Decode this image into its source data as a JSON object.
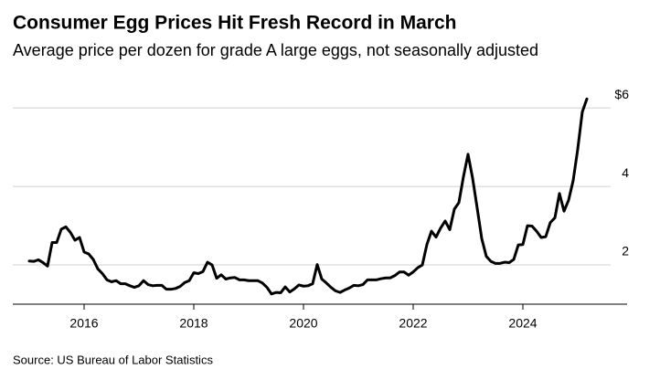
{
  "chart_data": {
    "type": "line",
    "title": "Consumer Egg Prices Hit Fresh Record in March",
    "subtitle": "Average price per dozen for grade A large eggs, not seasonally adjusted",
    "source": "Source: US Bureau of Labor Statistics",
    "color": "#000000",
    "x": [
      "2015-01",
      "2015-02",
      "2015-03",
      "2015-04",
      "2015-05",
      "2015-06",
      "2015-07",
      "2015-08",
      "2015-09",
      "2015-10",
      "2015-11",
      "2015-12",
      "2016-01",
      "2016-02",
      "2016-03",
      "2016-04",
      "2016-05",
      "2016-06",
      "2016-07",
      "2016-08",
      "2016-09",
      "2016-10",
      "2016-11",
      "2016-12",
      "2017-01",
      "2017-02",
      "2017-03",
      "2017-04",
      "2017-05",
      "2017-06",
      "2017-07",
      "2017-08",
      "2017-09",
      "2017-10",
      "2017-11",
      "2017-12",
      "2018-01",
      "2018-02",
      "2018-03",
      "2018-04",
      "2018-05",
      "2018-06",
      "2018-07",
      "2018-08",
      "2018-09",
      "2018-10",
      "2018-11",
      "2018-12",
      "2019-01",
      "2019-02",
      "2019-03",
      "2019-04",
      "2019-05",
      "2019-06",
      "2019-07",
      "2019-08",
      "2019-09",
      "2019-10",
      "2019-11",
      "2019-12",
      "2020-01",
      "2020-02",
      "2020-03",
      "2020-04",
      "2020-05",
      "2020-06",
      "2020-07",
      "2020-08",
      "2020-09",
      "2020-10",
      "2020-11",
      "2020-12",
      "2021-01",
      "2021-02",
      "2021-03",
      "2021-04",
      "2021-05",
      "2021-06",
      "2021-07",
      "2021-08",
      "2021-09",
      "2021-10",
      "2021-11",
      "2021-12",
      "2022-01",
      "2022-02",
      "2022-03",
      "2022-04",
      "2022-05",
      "2022-06",
      "2022-07",
      "2022-08",
      "2022-09",
      "2022-10",
      "2022-11",
      "2022-12",
      "2023-01",
      "2023-02",
      "2023-03",
      "2023-04",
      "2023-05",
      "2023-06",
      "2023-07",
      "2023-08",
      "2023-09",
      "2023-10",
      "2023-11",
      "2023-12",
      "2024-01",
      "2024-02",
      "2024-03",
      "2024-04",
      "2024-05",
      "2024-06",
      "2024-07",
      "2024-08",
      "2024-09",
      "2024-10",
      "2024-11",
      "2024-12",
      "2025-01",
      "2025-02",
      "2025-03"
    ],
    "values": [
      2.1,
      2.09,
      2.13,
      2.06,
      1.97,
      2.57,
      2.57,
      2.91,
      2.97,
      2.83,
      2.63,
      2.7,
      2.33,
      2.28,
      2.14,
      1.9,
      1.78,
      1.62,
      1.57,
      1.6,
      1.52,
      1.52,
      1.47,
      1.43,
      1.47,
      1.6,
      1.5,
      1.47,
      1.48,
      1.48,
      1.38,
      1.38,
      1.4,
      1.45,
      1.55,
      1.6,
      1.8,
      1.78,
      1.83,
      2.07,
      2.0,
      1.66,
      1.75,
      1.64,
      1.67,
      1.68,
      1.62,
      1.62,
      1.6,
      1.6,
      1.6,
      1.54,
      1.43,
      1.26,
      1.3,
      1.29,
      1.44,
      1.31,
      1.39,
      1.49,
      1.46,
      1.47,
      1.52,
      2.01,
      1.64,
      1.54,
      1.43,
      1.34,
      1.3,
      1.36,
      1.41,
      1.48,
      1.47,
      1.5,
      1.62,
      1.62,
      1.62,
      1.65,
      1.67,
      1.67,
      1.73,
      1.82,
      1.82,
      1.74,
      1.82,
      1.93,
      2.0,
      2.52,
      2.86,
      2.71,
      2.94,
      3.12,
      2.9,
      3.42,
      3.59,
      4.25,
      4.82,
      4.21,
      3.45,
      2.67,
      2.22,
      2.09,
      2.04,
      2.04,
      2.07,
      2.06,
      2.14,
      2.51,
      2.52,
      3.0,
      2.99,
      2.86,
      2.7,
      2.72,
      3.08,
      3.2,
      3.82,
      3.37,
      3.65,
      4.15,
      4.95,
      5.9,
      6.23
    ],
    "xlim": [
      2014.7,
      2025.9
    ],
    "xticks": [
      2016,
      2018,
      2020,
      2022,
      2024
    ],
    "ylim": [
      1,
      6.4
    ],
    "yticks": [
      2,
      4,
      {
        "value": 6,
        "label": "$6"
      }
    ],
    "grid": true
  }
}
